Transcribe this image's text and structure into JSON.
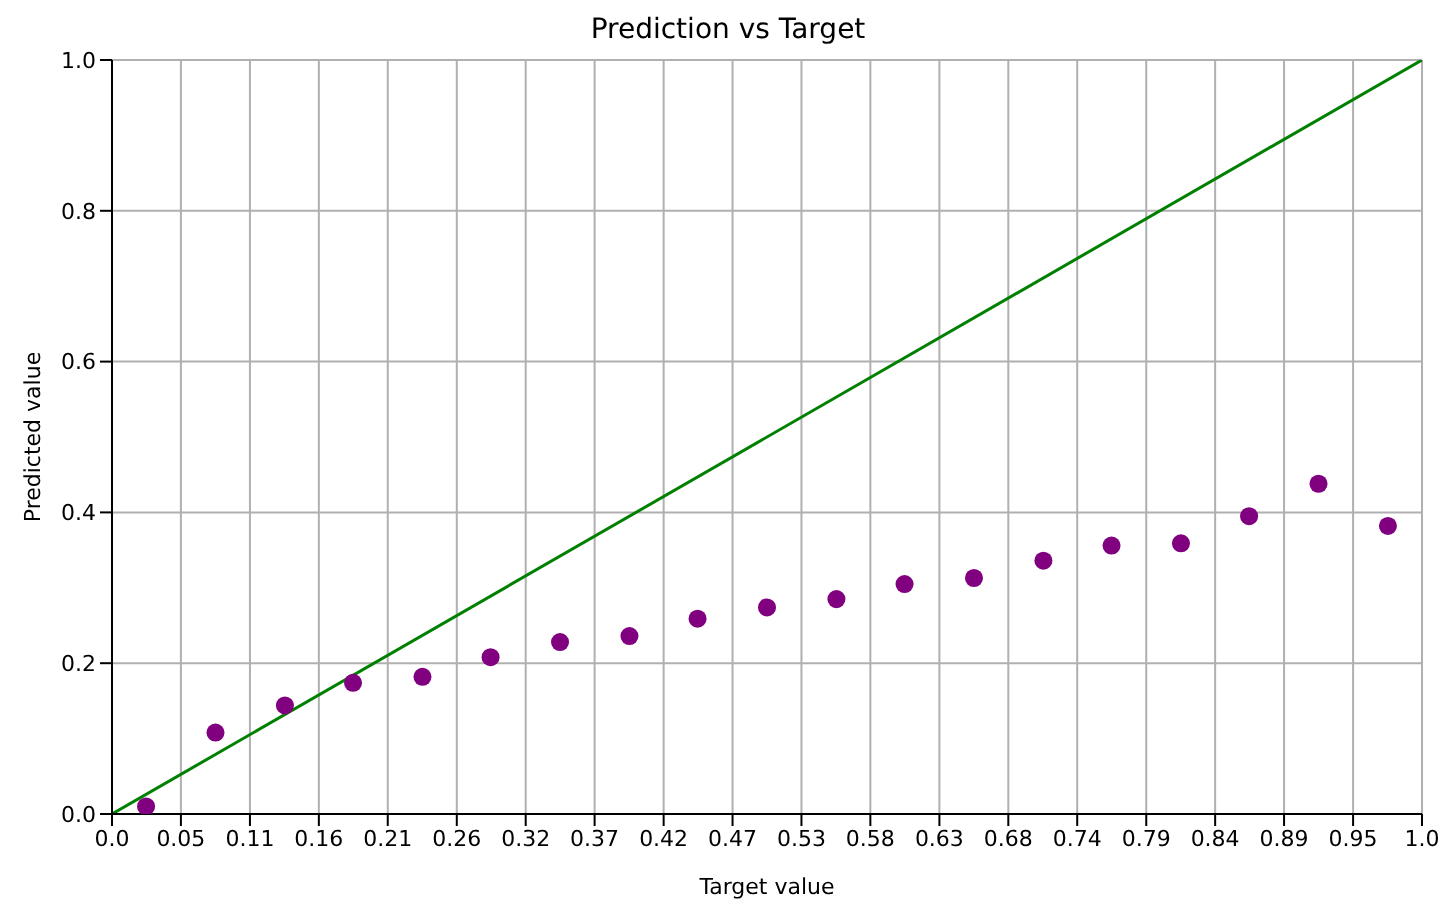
{
  "chart_data": {
    "type": "scatter",
    "title": "Prediction vs Target",
    "xlabel": "Target value",
    "ylabel": "Predicted value",
    "xlim": [
      0,
      1
    ],
    "ylim": [
      0,
      1
    ],
    "xticks": [
      {
        "value": 0,
        "label": "0.0"
      },
      {
        "value": 0.0526,
        "label": "0.05"
      },
      {
        "value": 0.1053,
        "label": "0.11"
      },
      {
        "value": 0.1579,
        "label": "0.16"
      },
      {
        "value": 0.2105,
        "label": "0.21"
      },
      {
        "value": 0.2632,
        "label": "0.26"
      },
      {
        "value": 0.3158,
        "label": "0.32"
      },
      {
        "value": 0.3684,
        "label": "0.37"
      },
      {
        "value": 0.4211,
        "label": "0.42"
      },
      {
        "value": 0.4737,
        "label": "0.47"
      },
      {
        "value": 0.5263,
        "label": "0.53"
      },
      {
        "value": 0.5789,
        "label": "0.58"
      },
      {
        "value": 0.6316,
        "label": "0.63"
      },
      {
        "value": 0.6842,
        "label": "0.68"
      },
      {
        "value": 0.7368,
        "label": "0.74"
      },
      {
        "value": 0.7895,
        "label": "0.79"
      },
      {
        "value": 0.8421,
        "label": "0.84"
      },
      {
        "value": 0.8947,
        "label": "0.89"
      },
      {
        "value": 0.9474,
        "label": "0.95"
      },
      {
        "value": 1,
        "label": "1.0"
      }
    ],
    "yticks": [
      {
        "value": 0,
        "label": "0.0"
      },
      {
        "value": 0.2,
        "label": "0.2"
      },
      {
        "value": 0.4,
        "label": "0.4"
      },
      {
        "value": 0.6,
        "label": "0.6"
      },
      {
        "value": 0.8,
        "label": "0.8"
      },
      {
        "value": 1,
        "label": "1.0"
      }
    ],
    "grid": true,
    "legend": false,
    "series": [
      {
        "color": "#800080",
        "marker": "circle",
        "x": [
          0.026,
          0.079,
          0.132,
          0.184,
          0.237,
          0.289,
          0.342,
          0.395,
          0.447,
          0.5,
          0.553,
          0.605,
          0.658,
          0.711,
          0.763,
          0.816,
          0.868,
          0.921,
          0.974
        ],
        "values": [
          0.01,
          0.108,
          0.144,
          0.174,
          0.182,
          0.208,
          0.228,
          0.236,
          0.259,
          0.274,
          0.285,
          0.305,
          0.313,
          0.336,
          0.356,
          0.359,
          0.395,
          0.438,
          0.382
        ]
      },
      {
        "type": "line",
        "color": "#008000",
        "marker": "none",
        "x": [
          0,
          1
        ],
        "values": [
          0,
          1
        ]
      }
    ]
  }
}
